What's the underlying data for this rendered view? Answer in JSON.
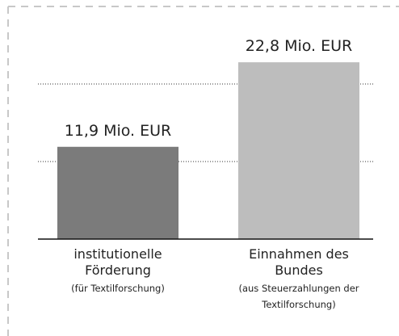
{
  "chart_data": {
    "type": "bar",
    "categories": [
      "institutionelle Förderung",
      "Einnahmen des Bundes"
    ],
    "category_notes": [
      "(für Textilforschung)",
      "(aus Steuerzahlungen der Textilforschung)"
    ],
    "values": [
      11.9,
      22.8
    ],
    "value_labels": [
      "11,9 Mio. EUR",
      "22,8 Mio. EUR"
    ],
    "colors": [
      "#7b7b7b",
      "#bdbdbd"
    ],
    "ylim": [
      0,
      25
    ],
    "yticks": [
      10,
      20
    ],
    "grid": true
  }
}
